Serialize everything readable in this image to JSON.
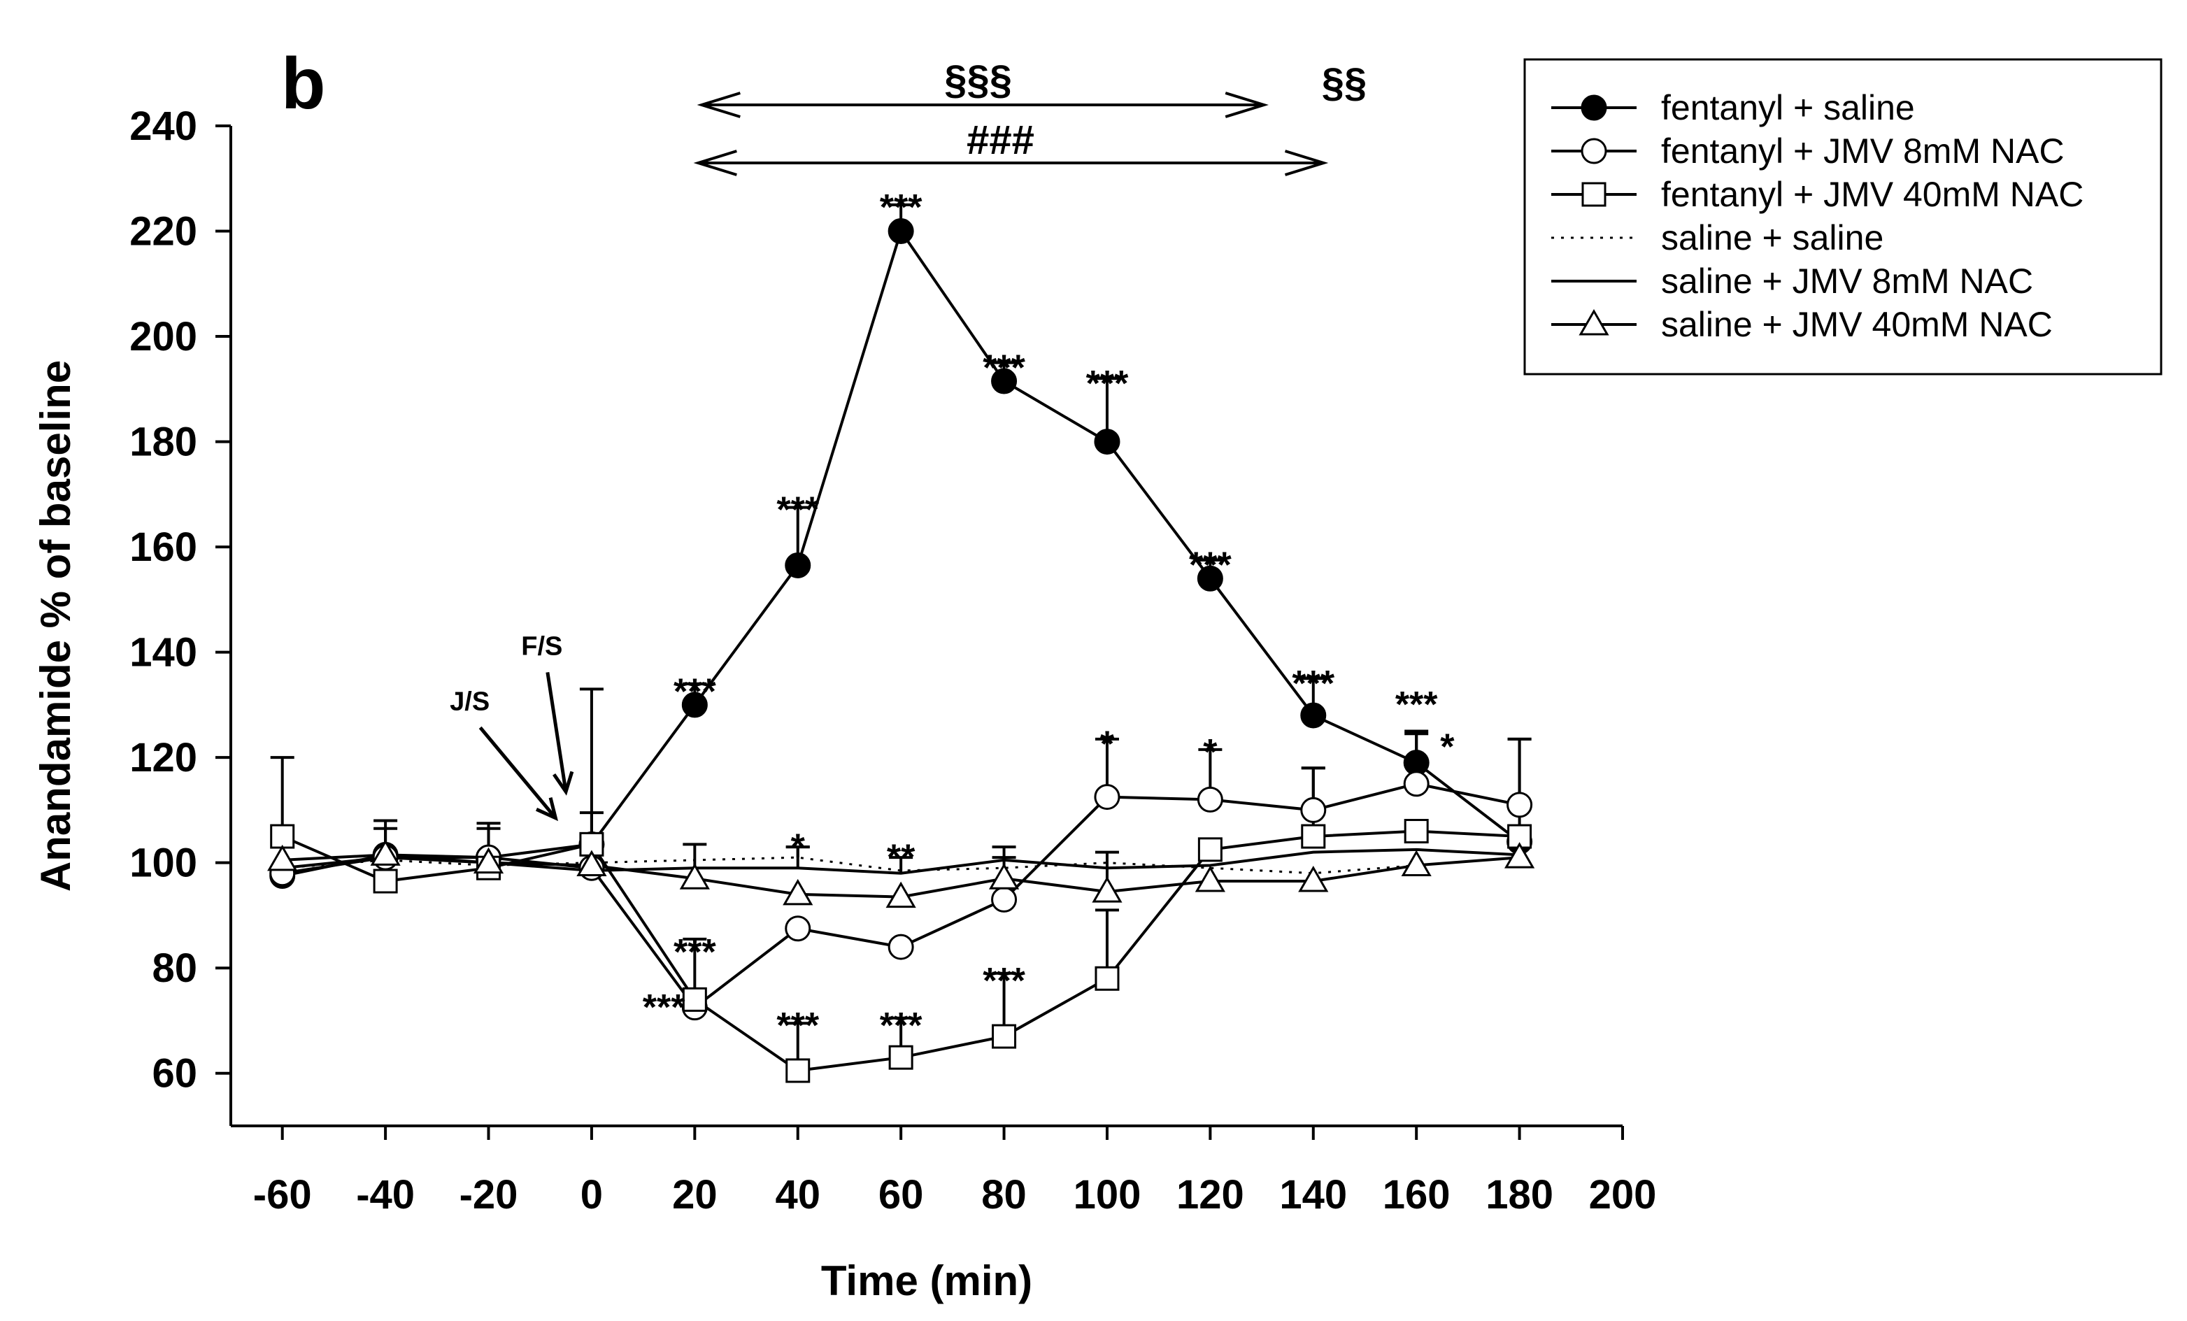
{
  "chart_data": {
    "type": "line",
    "panel_label": "b",
    "xlabel": "Time (min)",
    "ylabel": "Anandamide % of baseline",
    "xlim": [
      -70,
      200
    ],
    "ylim": [
      50,
      240
    ],
    "xticks": [
      -60,
      -40,
      -20,
      0,
      20,
      40,
      60,
      80,
      100,
      120,
      140,
      160,
      180,
      200
    ],
    "yticks": [
      60,
      80,
      100,
      120,
      140,
      160,
      180,
      200,
      220,
      240
    ],
    "series": [
      {
        "name": "fentanyl + saline",
        "marker": "circle-filled",
        "line": "solid",
        "x": [
          -60,
          -40,
          -20,
          0,
          20,
          40,
          60,
          80,
          100,
          120,
          140,
          160,
          180
        ],
        "y": [
          97.5,
          101.5,
          101,
          103.5,
          130,
          156.5,
          220,
          191.5,
          180,
          154,
          128,
          119,
          104
        ],
        "err": [
          0,
          0,
          0,
          29.5,
          4,
          11,
          5,
          3.5,
          12,
          3.5,
          7,
          6,
          0
        ]
      },
      {
        "name": "fentanyl + JMV 8mM NAC",
        "marker": "circle-open",
        "line": "solid",
        "x": [
          -60,
          -40,
          -20,
          0,
          20,
          40,
          60,
          80,
          100,
          120,
          140,
          160,
          180
        ],
        "y": [
          98,
          101,
          101,
          99,
          72.5,
          87.5,
          84,
          93,
          112.5,
          112,
          110,
          115,
          111
        ],
        "err": [
          0,
          0,
          0,
          0,
          0,
          0,
          0,
          0,
          11,
          9.5,
          8,
          9.5,
          12.5
        ]
      },
      {
        "name": "fentanyl + JMV 40mM NAC",
        "marker": "square-open",
        "line": "solid",
        "x": [
          -60,
          -40,
          -20,
          0,
          20,
          40,
          60,
          80,
          100,
          120,
          140,
          160,
          180
        ],
        "y": [
          105,
          96.5,
          99,
          103.5,
          74,
          60.5,
          63,
          67,
          78,
          102.5,
          105,
          106,
          105
        ],
        "err": [
          15,
          0,
          0,
          6,
          11.5,
          9,
          7.5,
          12,
          13,
          0,
          13,
          0,
          18.5
        ]
      },
      {
        "name": "saline + saline",
        "marker": "none",
        "line": "dotted",
        "x": [
          -60,
          -40,
          -20,
          0,
          20,
          40,
          60,
          80,
          100,
          120,
          140,
          160,
          180
        ],
        "y": [
          99,
          100.5,
          99.5,
          100,
          100.5,
          101,
          98.5,
          99,
          100,
          99,
          98,
          99.5,
          101
        ],
        "err": [
          0,
          0,
          0,
          0,
          0,
          2,
          0,
          0,
          0,
          0,
          0,
          0,
          0
        ]
      },
      {
        "name": "saline + JMV 8mM NAC",
        "marker": "none",
        "line": "solid",
        "x": [
          -60,
          -40,
          -20,
          0,
          20,
          40,
          60,
          80,
          100,
          120,
          140,
          160,
          180
        ],
        "y": [
          99,
          101,
          100,
          98.5,
          99,
          99,
          98,
          100.5,
          99,
          99.5,
          102,
          102.5,
          101.5
        ],
        "err": [
          0,
          7,
          7.5,
          0,
          4.5,
          4,
          3,
          2.5,
          0,
          0,
          0,
          0,
          0
        ]
      },
      {
        "name": "saline + JMV 40mM NAC",
        "marker": "triangle-open",
        "line": "solid",
        "x": [
          -60,
          -40,
          -20,
          0,
          20,
          40,
          60,
          80,
          100,
          120,
          140,
          160,
          180
        ],
        "y": [
          100.5,
          101.5,
          100,
          99.5,
          97,
          94,
          93.5,
          97,
          94.5,
          96.5,
          96.5,
          99.5,
          101
        ],
        "err": [
          0,
          5,
          6.5,
          0,
          0,
          0,
          0,
          4,
          7.5,
          0,
          0,
          0,
          0
        ]
      }
    ],
    "significance_labels": [
      {
        "text": "***",
        "x": 20,
        "y": 135
      },
      {
        "text": "***",
        "x": 40,
        "y": 169.5
      },
      {
        "text": "***",
        "x": 60,
        "y": 227
      },
      {
        "text": "***",
        "x": 80,
        "y": 196.5
      },
      {
        "text": "***",
        "x": 100,
        "y": 193.5
      },
      {
        "text": "***",
        "x": 120,
        "y": 159
      },
      {
        "text": "***",
        "x": 140,
        "y": 136.5
      },
      {
        "text": "***",
        "x": 160,
        "y": 132.5
      },
      {
        "text": "*",
        "x": 166,
        "y": 124.5
      },
      {
        "text": "*",
        "x": 100,
        "y": 125
      },
      {
        "text": "*",
        "x": 120,
        "y": 123.5
      },
      {
        "text": "*",
        "x": 40,
        "y": 105.5
      },
      {
        "text": "**",
        "x": 60,
        "y": 103.5
      },
      {
        "text": "***",
        "x": 14,
        "y": 75
      },
      {
        "text": "***",
        "x": 20,
        "y": 85.5
      },
      {
        "text": "***",
        "x": 40,
        "y": 71.5
      },
      {
        "text": "***",
        "x": 60,
        "y": 71.5
      },
      {
        "text": "***",
        "x": 80,
        "y": 80
      }
    ],
    "bracket_labels": [
      {
        "text": "§§§",
        "x_from": 20,
        "x_to": 125,
        "y": 245,
        "label_x": 72
      },
      {
        "text": "###",
        "x_from": 20,
        "x_to": 142,
        "y": 234,
        "label_x": 80
      },
      {
        "text": "§§",
        "x": 146,
        "y": 245
      }
    ],
    "annotations": [
      {
        "text": "J/S",
        "x": -25,
        "y": 131
      },
      {
        "text": "F/S",
        "x": -11,
        "y": 141.5
      }
    ],
    "legend_position": "top-right"
  }
}
